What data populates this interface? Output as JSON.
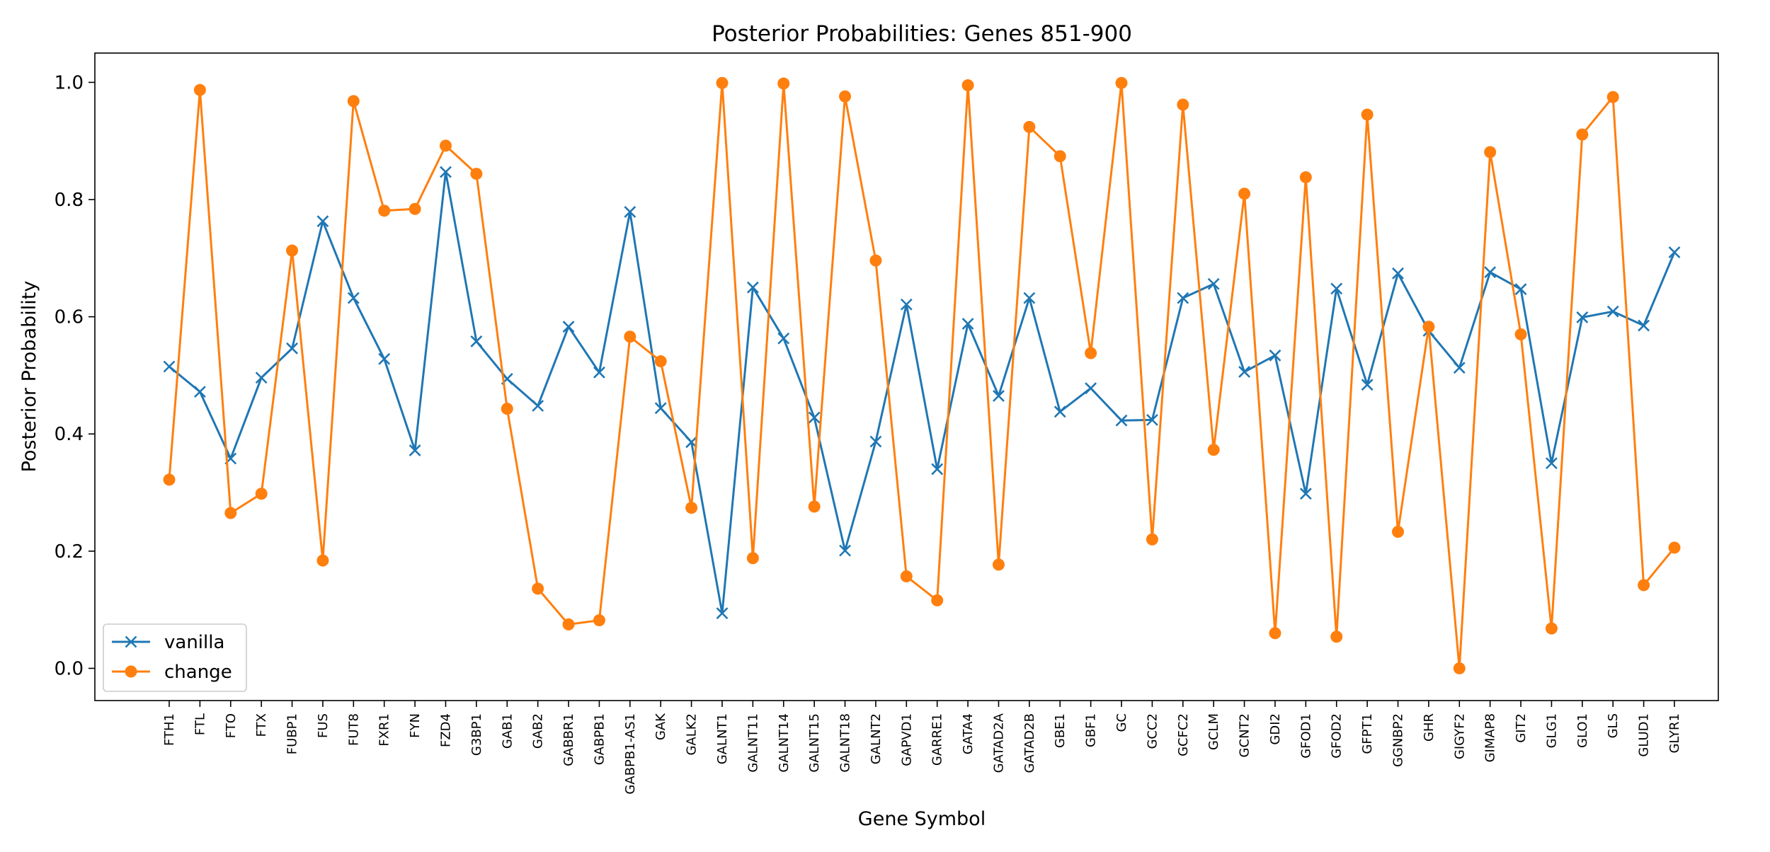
{
  "chart_data": {
    "type": "line",
    "title": "Posterior Probabilities: Genes 851-900",
    "xlabel": "Gene Symbol",
    "ylabel": "Posterior Probability",
    "ylim": [
      -0.055,
      1.05
    ],
    "yticks": [
      0.0,
      0.2,
      0.4,
      0.6,
      0.8,
      1.0
    ],
    "ytick_labels": [
      "0.0",
      "0.2",
      "0.4",
      "0.6",
      "0.8",
      "1.0"
    ],
    "grid": false,
    "legend_position": "lower-left",
    "categories": [
      "FTH1",
      "FTL",
      "FTO",
      "FTX",
      "FUBP1",
      "FUS",
      "FUT8",
      "FXR1",
      "FYN",
      "FZD4",
      "G3BP1",
      "GAB1",
      "GAB2",
      "GABBR1",
      "GABPB1",
      "GABPB1-AS1",
      "GAK",
      "GALK2",
      "GALNT1",
      "GALNT11",
      "GALNT14",
      "GALNT15",
      "GALNT18",
      "GALNT2",
      "GAPVD1",
      "GARRE1",
      "GATA4",
      "GATAD2A",
      "GATAD2B",
      "GBE1",
      "GBF1",
      "GC",
      "GCC2",
      "GCFC2",
      "GCLM",
      "GCNT2",
      "GDI2",
      "GFOD1",
      "GFOD2",
      "GFPT1",
      "GGNBP2",
      "GHR",
      "GIGYF2",
      "GIMAP8",
      "GIT2",
      "GLG1",
      "GLO1",
      "GLS",
      "GLUD1",
      "GLYR1"
    ],
    "series": [
      {
        "name": "vanilla",
        "color": "#1f77b4",
        "marker": "x",
        "values": [
          0.515,
          0.472,
          0.358,
          0.496,
          0.546,
          0.763,
          0.632,
          0.528,
          0.372,
          0.847,
          0.558,
          0.494,
          0.448,
          0.583,
          0.505,
          0.779,
          0.444,
          0.386,
          0.094,
          0.65,
          0.563,
          0.428,
          0.201,
          0.387,
          0.621,
          0.34,
          0.588,
          0.465,
          0.632,
          0.438,
          0.478,
          0.423,
          0.424,
          0.632,
          0.656,
          0.506,
          0.534,
          0.298,
          0.648,
          0.484,
          0.674,
          0.576,
          0.513,
          0.676,
          0.647,
          0.35,
          0.599,
          0.609,
          0.585,
          0.71
        ]
      },
      {
        "name": "change",
        "color": "#ff7f0e",
        "marker": "o",
        "values": [
          0.322,
          0.987,
          0.265,
          0.298,
          0.713,
          0.184,
          0.968,
          0.781,
          0.784,
          0.892,
          0.844,
          0.443,
          0.136,
          0.075,
          0.082,
          0.566,
          0.524,
          0.274,
          0.999,
          0.188,
          0.998,
          0.276,
          0.976,
          0.696,
          0.157,
          0.116,
          0.995,
          0.177,
          0.924,
          0.874,
          0.538,
          0.999,
          0.22,
          0.962,
          0.373,
          0.81,
          0.06,
          0.838,
          0.054,
          0.945,
          0.233,
          0.583,
          0.0,
          0.881,
          0.57,
          0.068,
          0.911,
          0.975,
          0.142,
          0.206
        ]
      }
    ]
  }
}
